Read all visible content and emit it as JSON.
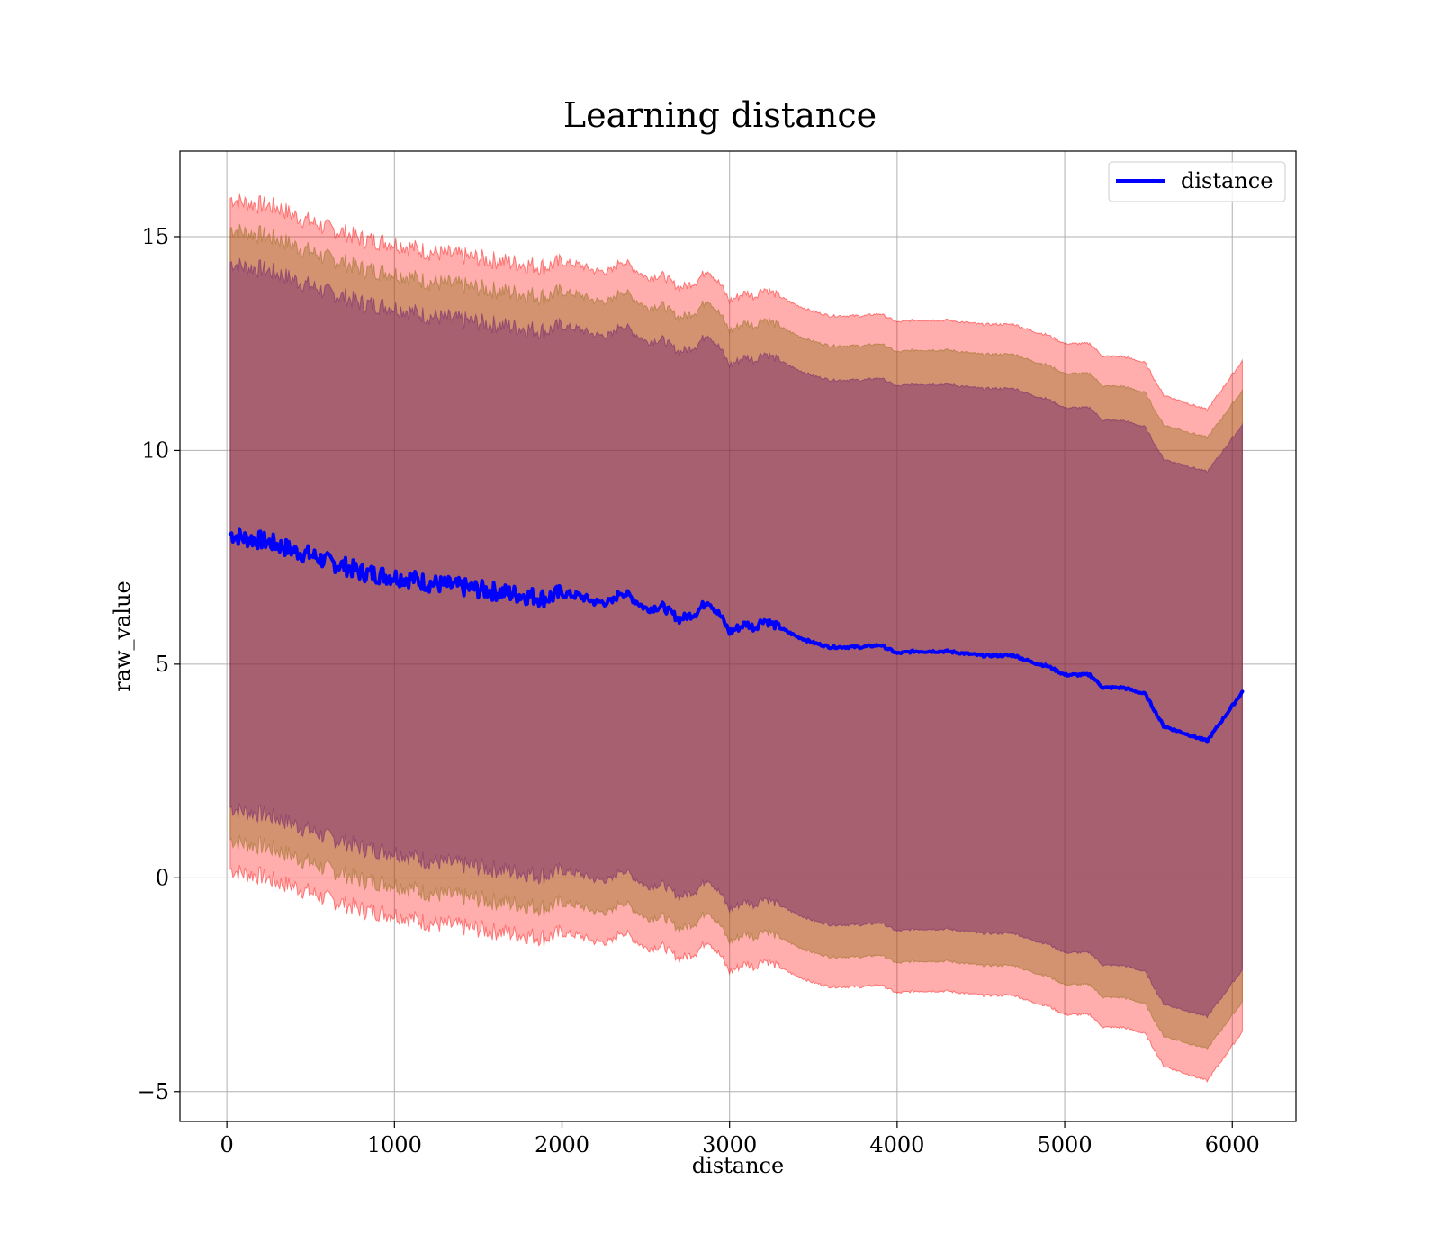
{
  "chart_data": {
    "type": "line",
    "title": "Learning distance",
    "xlabel": "distance",
    "ylabel": "raw_value",
    "xlim": [
      -280,
      6380
    ],
    "ylim": [
      -5.7,
      17.0
    ],
    "xticks": [
      0,
      1000,
      2000,
      3000,
      4000,
      5000,
      6000
    ],
    "yticks": [
      -5,
      0,
      5,
      10,
      15
    ],
    "xtick_labels": [
      "0",
      "1000",
      "2000",
      "3000",
      "4000",
      "5000",
      "6000"
    ],
    "ytick_labels": [
      "−5",
      "0",
      "5",
      "10",
      "15"
    ],
    "grid": true,
    "legend": {
      "placement": "top-right",
      "entries": [
        "distance"
      ]
    },
    "colors": {
      "line": "#0000ff",
      "band_outer": "#ff0000",
      "band_middle": "#8b6a10",
      "band_inner": "#6a1a6e",
      "grid": "#b0b0b0"
    },
    "series": [
      {
        "name": "distance",
        "x": [
          20,
          100,
          200,
          300,
          400,
          500,
          600,
          700,
          800,
          900,
          1000,
          1100,
          1200,
          1300,
          1400,
          1500,
          1600,
          1700,
          1800,
          1900,
          2000,
          2100,
          2200,
          2300,
          2350,
          2400,
          2500,
          2600,
          2700,
          2800,
          2870,
          2950,
          3000,
          3100,
          3150,
          3200,
          3300,
          3400,
          3500,
          3600,
          3700,
          3800,
          3900,
          4000,
          4100,
          4200,
          4300,
          4400,
          4500,
          4600,
          4700,
          4800,
          4900,
          5000,
          5150,
          5230,
          5350,
          5480,
          5590,
          5850,
          6060
        ],
        "values": [
          8.05,
          7.95,
          7.9,
          7.8,
          7.65,
          7.55,
          7.4,
          7.3,
          7.15,
          7.1,
          7.05,
          7.0,
          6.9,
          6.85,
          6.8,
          6.75,
          6.7,
          6.65,
          6.6,
          6.55,
          6.65,
          6.6,
          6.45,
          6.45,
          6.7,
          6.6,
          6.3,
          6.35,
          6.05,
          6.2,
          6.5,
          6.1,
          5.75,
          5.95,
          5.85,
          6.05,
          5.85,
          5.65,
          5.5,
          5.4,
          5.4,
          5.4,
          5.45,
          5.25,
          5.3,
          5.3,
          5.3,
          5.25,
          5.2,
          5.2,
          5.2,
          5.05,
          4.95,
          4.75,
          4.75,
          4.45,
          4.45,
          4.3,
          3.55,
          3.2,
          4.35
        ],
        "band_outer_upper": [
          15.9,
          15.8,
          15.75,
          15.7,
          15.5,
          15.35,
          15.2,
          15.1,
          14.95,
          14.9,
          14.85,
          14.75,
          14.65,
          14.6,
          14.55,
          14.5,
          14.45,
          14.4,
          14.35,
          14.3,
          14.4,
          14.35,
          14.2,
          14.2,
          14.45,
          14.35,
          14.05,
          14.1,
          13.8,
          13.95,
          14.25,
          13.85,
          13.5,
          13.7,
          13.6,
          13.8,
          13.6,
          13.4,
          13.25,
          13.15,
          13.15,
          13.15,
          13.2,
          13.0,
          13.05,
          13.05,
          13.05,
          13.0,
          12.95,
          12.95,
          12.95,
          12.8,
          12.7,
          12.5,
          12.5,
          12.2,
          12.2,
          12.05,
          11.3,
          10.95,
          12.1
        ],
        "band_outer_lower": [
          0.2,
          0.1,
          0.05,
          -0.1,
          -0.2,
          -0.35,
          -0.5,
          -0.6,
          -0.75,
          -0.8,
          -0.85,
          -0.95,
          -1.05,
          -1.1,
          -1.15,
          -1.2,
          -1.25,
          -1.3,
          -1.35,
          -1.4,
          -1.3,
          -1.35,
          -1.5,
          -1.5,
          -1.25,
          -1.35,
          -1.65,
          -1.6,
          -1.9,
          -1.75,
          -1.45,
          -1.85,
          -2.2,
          -2.0,
          -2.1,
          -1.9,
          -2.1,
          -2.3,
          -2.45,
          -2.55,
          -2.55,
          -2.55,
          -2.5,
          -2.7,
          -2.65,
          -2.65,
          -2.65,
          -2.7,
          -2.75,
          -2.75,
          -2.75,
          -2.9,
          -3.0,
          -3.2,
          -3.2,
          -3.5,
          -3.5,
          -3.65,
          -4.4,
          -4.75,
          -3.6
        ],
        "band_middle_upper": [
          15.2,
          15.1,
          15.05,
          14.95,
          14.8,
          14.65,
          14.5,
          14.4,
          14.25,
          14.2,
          14.15,
          14.05,
          13.95,
          13.9,
          13.85,
          13.8,
          13.75,
          13.7,
          13.65,
          13.6,
          13.7,
          13.65,
          13.5,
          13.5,
          13.75,
          13.65,
          13.35,
          13.4,
          13.1,
          13.25,
          13.55,
          13.15,
          12.8,
          13.0,
          12.9,
          13.1,
          12.9,
          12.7,
          12.55,
          12.45,
          12.45,
          12.45,
          12.5,
          12.3,
          12.35,
          12.35,
          12.35,
          12.3,
          12.25,
          12.25,
          12.25,
          12.1,
          12.0,
          11.8,
          11.8,
          11.5,
          11.5,
          11.35,
          10.6,
          10.3,
          11.4
        ],
        "band_middle_lower": [
          0.9,
          0.8,
          0.75,
          0.65,
          0.5,
          0.35,
          0.2,
          0.1,
          -0.05,
          -0.1,
          -0.15,
          -0.25,
          -0.35,
          -0.4,
          -0.45,
          -0.5,
          -0.55,
          -0.6,
          -0.65,
          -0.7,
          -0.6,
          -0.65,
          -0.8,
          -0.8,
          -0.55,
          -0.65,
          -0.95,
          -0.9,
          -1.2,
          -1.05,
          -0.75,
          -1.15,
          -1.5,
          -1.3,
          -1.4,
          -1.2,
          -1.4,
          -1.6,
          -1.75,
          -1.85,
          -1.85,
          -1.85,
          -1.8,
          -2.0,
          -1.95,
          -1.95,
          -1.95,
          -2.0,
          -2.05,
          -2.05,
          -2.05,
          -2.2,
          -2.3,
          -2.5,
          -2.5,
          -2.8,
          -2.8,
          -2.95,
          -3.7,
          -4.0,
          -2.9
        ],
        "band_inner_upper": [
          14.4,
          14.3,
          14.25,
          14.15,
          14.0,
          13.85,
          13.7,
          13.6,
          13.45,
          13.4,
          13.35,
          13.25,
          13.15,
          13.1,
          13.05,
          13.0,
          12.95,
          12.9,
          12.85,
          12.8,
          12.9,
          12.85,
          12.7,
          12.7,
          12.95,
          12.85,
          12.55,
          12.6,
          12.3,
          12.45,
          12.75,
          12.35,
          12.0,
          12.2,
          12.1,
          12.3,
          12.1,
          11.9,
          11.75,
          11.65,
          11.65,
          11.65,
          11.7,
          11.5,
          11.55,
          11.55,
          11.55,
          11.5,
          11.45,
          11.45,
          11.45,
          11.3,
          11.2,
          11.0,
          11.0,
          10.7,
          10.7,
          10.55,
          9.8,
          9.5,
          10.6
        ],
        "band_inner_lower": [
          1.65,
          1.55,
          1.5,
          1.4,
          1.25,
          1.1,
          0.95,
          0.85,
          0.7,
          0.65,
          0.6,
          0.5,
          0.4,
          0.35,
          0.3,
          0.25,
          0.2,
          0.15,
          0.1,
          0.05,
          0.15,
          0.1,
          -0.05,
          -0.05,
          0.2,
          0.1,
          -0.2,
          -0.15,
          -0.45,
          -0.3,
          0.0,
          -0.4,
          -0.75,
          -0.55,
          -0.65,
          -0.45,
          -0.65,
          -0.85,
          -1.0,
          -1.1,
          -1.1,
          -1.1,
          -1.05,
          -1.25,
          -1.2,
          -1.2,
          -1.2,
          -1.25,
          -1.3,
          -1.3,
          -1.3,
          -1.45,
          -1.55,
          -1.75,
          -1.75,
          -2.05,
          -2.05,
          -2.2,
          -2.95,
          -3.25,
          -2.15
        ]
      }
    ]
  }
}
